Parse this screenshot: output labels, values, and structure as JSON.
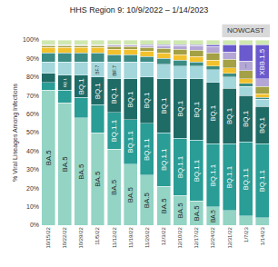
{
  "chart_data": {
    "type": "bar",
    "stacked": true,
    "title": "HHS Region 9: 10/9/2022 – 1/14/2023",
    "y_label": "% Viral Lineages Among Infections",
    "categories": [
      "10/15/22",
      "10/22/22",
      "10/29/22",
      "11/5/22",
      "11/12/22",
      "11/19/22",
      "11/26/22",
      "12/3/22",
      "12/10/22",
      "12/17/22",
      "12/24/22",
      "12/31/22",
      "1/7/23",
      "1/14/23"
    ],
    "ylim": [
      0,
      100
    ],
    "yticks": [
      {
        "value": 0,
        "label": "0%"
      },
      {
        "value": 10,
        "label": "10%"
      },
      {
        "value": 20,
        "label": "20%"
      },
      {
        "value": 30,
        "label": "30%"
      },
      {
        "value": 40,
        "label": "40%"
      },
      {
        "value": 50,
        "label": "50%"
      },
      {
        "value": 60,
        "label": "60%"
      },
      {
        "value": 70,
        "label": "70%"
      },
      {
        "value": 80,
        "label": "80%"
      },
      {
        "value": 90,
        "label": "90%"
      },
      {
        "value": 100,
        "label": "100%"
      }
    ],
    "grid": false,
    "nowcast": {
      "text": "NOWCAST",
      "from": "12/31/22",
      "to": "1/14/23"
    },
    "series": [
      {
        "name": "BA.5",
        "color": "#93d4c4",
        "values": [
          73,
          66,
          58,
          50,
          41,
          33,
          27,
          21,
          16,
          13,
          10,
          8,
          5,
          4
        ],
        "segment_labels": [
          "BA.5",
          "BA.5",
          "BA.5",
          "BA.5",
          "BA.5",
          "BA.5",
          "BA.5",
          "BA.5",
          "BA.5",
          "BA.5",
          "BA.5",
          null,
          null,
          null
        ]
      },
      {
        "name": "BQ.1.1",
        "color": "#2a9d96",
        "values": [
          4,
          7,
          11,
          15,
          20,
          24,
          28,
          29,
          31,
          33,
          34,
          36,
          40,
          40
        ],
        "segment_labels": [
          null,
          null,
          null,
          null,
          "BQ.1.1",
          "BQ.1.1",
          "BQ.1.1",
          "BQ.1.1",
          "BQ.1.1",
          "BQ.1.1",
          "BQ.1.1",
          "BQ.1.1",
          "BQ.1.1",
          "BQ.1.1"
        ]
      },
      {
        "name": "BQ.1",
        "color": "#1f6b66",
        "values": [
          5,
          8,
          12,
          15,
          18,
          22,
          25,
          29,
          32,
          33,
          33,
          30,
          25,
          20
        ],
        "segment_labels": [
          null,
          "BQ.1",
          "BQ.1",
          "BQ.1",
          "BQ.1",
          "BQ.1",
          "BQ.1",
          "BQ.1",
          "BQ.1",
          "BQ.1",
          "BQ.1",
          "BQ.1",
          "BQ.1",
          "BQ.1"
        ]
      },
      {
        "name": "BF.7",
        "color": "#a3d7dc",
        "values": [
          6,
          7,
          7,
          8,
          9,
          9,
          8,
          8,
          7,
          7,
          7,
          6,
          5,
          4
        ],
        "segment_labels": [
          null,
          null,
          null,
          "BF.7",
          "BF.7",
          null,
          null,
          null,
          null,
          null,
          null,
          null,
          null,
          null
        ]
      },
      {
        "color": "#3b8c84",
        "values": [
          5,
          5,
          5,
          5,
          4,
          4,
          3,
          3,
          3,
          2,
          2,
          2,
          1.5,
          1
        ]
      },
      {
        "color": "#f2c12e",
        "values": [
          3,
          3,
          3,
          3,
          3,
          3,
          3,
          3,
          3,
          3,
          3,
          3,
          2.5,
          2
        ]
      },
      {
        "color": "#a3a046",
        "values": [
          1,
          1,
          1,
          1,
          1.5,
          1.5,
          2,
          2.5,
          3,
          3.5,
          4,
          4.5,
          4.5,
          4
        ]
      },
      {
        "name": "XBB",
        "color": "#b4a7d6",
        "values": [
          0.5,
          0.5,
          0.5,
          0.5,
          1,
          1,
          1,
          1.5,
          2,
          2.5,
          3.5,
          4,
          5,
          4
        ],
        "segment_labels": [
          null,
          null,
          null,
          null,
          null,
          null,
          null,
          null,
          null,
          null,
          null,
          null,
          "XBB",
          null
        ]
      },
      {
        "name": "XBB.1.5",
        "color": "#6a5acd",
        "values": [
          0,
          0,
          0,
          0,
          0,
          0,
          0.5,
          0.5,
          0.5,
          0.5,
          1,
          4,
          9,
          18.5
        ],
        "segment_labels": [
          null,
          null,
          null,
          null,
          null,
          null,
          null,
          null,
          null,
          null,
          null,
          null,
          null,
          "XBB.1.5"
        ]
      },
      {
        "color": "#cfe8b0",
        "values": [
          2.5,
          2.5,
          2.5,
          2.5,
          2.5,
          2.5,
          2.5,
          2.5,
          2.5,
          2.5,
          2.5,
          2.5,
          2.5,
          2.5
        ]
      }
    ]
  }
}
